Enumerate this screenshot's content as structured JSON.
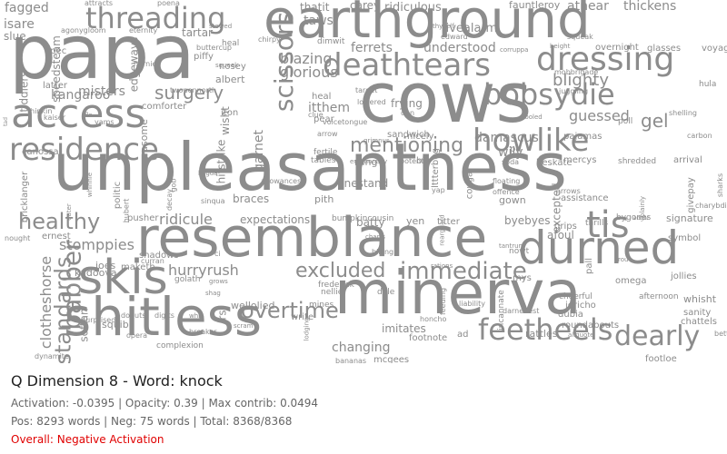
{
  "title": "Q Dimension 8 - Word: knock",
  "stats_line": "Activation: -0.0395 | Opacity: 0.39 | Max contrib: 0.0494",
  "counts_line": "Pos: 8293 words | Neg: 75 words | Total: 8368/8368",
  "overall": "Overall: Negative Activation",
  "colors": {
    "word": "#8c8c8c",
    "negative": "#e00000",
    "title": "#222222",
    "meta": "#666666"
  },
  "words": [
    "papa",
    "unpleasantness",
    "resemblance",
    "minerva",
    "cows",
    "earthground",
    "shitless",
    "skis",
    "access",
    "deathtears",
    "threading",
    "residence",
    "durned",
    "howlike",
    "feetheels",
    "bobsydie",
    "dressing",
    "tis",
    "dearly",
    "excluded",
    "immediate",
    "overtime",
    "mentioning",
    "healthy",
    "scissors",
    "babber",
    "standards",
    "surgery",
    "ridicule",
    "stomppies",
    "hurryrush",
    "blazing",
    "glorious",
    "ferrets",
    "understood",
    "fivealarm",
    "blighty",
    "guessed",
    "gel",
    "ridiculous",
    "fagged",
    "attracts",
    "poena",
    "carey",
    "thatit",
    "taws",
    "fauntleroy",
    "atnear",
    "thickens",
    "tartar",
    "eternity",
    "agonygloom",
    "kangaroo",
    "misters",
    "latter",
    "spec",
    "isare",
    "slue",
    "tiddlers",
    "speedsteam",
    "edgeways",
    "buttercup",
    "piffy",
    "albert",
    "nosey",
    "itthem",
    "heal",
    "frying",
    "dan",
    "sandwich",
    "nicely",
    "damascus",
    "wily",
    "pa",
    "soda",
    "beskate",
    "mercys",
    "shredded",
    "arrival",
    "strawberry",
    "pajamas",
    "carbon",
    "poll",
    "shelling",
    "hula",
    "mobbrigade",
    "overnight",
    "glasses",
    "voyage",
    "height",
    "squeak",
    "edward",
    "thyself",
    "corruppa",
    "juggling",
    "target",
    "lowered",
    "fooled",
    "comforter",
    "asome",
    "hitstrike",
    "garnet",
    "wisht",
    "iton",
    "clotheshorse",
    "bricklanger",
    "canossa",
    "ernest",
    "nought",
    "politic",
    "pusher",
    "expectations",
    "braces",
    "linestand",
    "pith",
    "fertile",
    "tables",
    "rung",
    "biv",
    "lttterbug",
    "cougar",
    "yap",
    "floating",
    "offence",
    "gown",
    "assistance",
    "arrows",
    "thrills",
    "bygones",
    "signature",
    "givepay",
    "charybdis",
    "sharks",
    "excepted",
    "afoul",
    "plainly",
    "edgar",
    "grips",
    "symbol",
    "jollies",
    "whisht",
    "sanity",
    "chattels",
    "betters",
    "footloe",
    "rattles",
    "jericho",
    "dubia",
    "roundabouts",
    "cheerful",
    "omega",
    "pall",
    "afternoon",
    "rou",
    "mys",
    "nowt",
    "tantrum",
    "byebyes",
    "titter",
    "yen",
    "batty",
    "bumpkincousin",
    "imitates",
    "footnote",
    "changing",
    "mcgees",
    "bananas",
    "ad",
    "aliquote",
    "incannate",
    "liability",
    "darnedest",
    "honcho",
    "feeding",
    "rations",
    "dale",
    "nellie",
    "frederick",
    "mines",
    "write",
    "wellolied",
    "squib",
    "donuts",
    "digits",
    "surprised",
    "opera",
    "complexion",
    "lodging",
    "dynamite",
    "softan",
    "kadoova",
    "joes",
    "maketh",
    "curran",
    "shadows",
    "golath",
    "ci",
    "grows",
    "shag",
    "rs",
    "whiz",
    "scram",
    "breaker",
    "charts",
    "billing",
    "rearguard",
    "heal",
    "dimwit",
    "chirpy",
    "pear",
    "clue",
    "arrow",
    "voicetongue",
    "potentia",
    "emotionally",
    "grimnus",
    "decay",
    "gob",
    "whinnie",
    "eater",
    "hubert",
    "sinqua",
    "lingua",
    "allowances",
    "kaiser",
    "yams",
    "flo",
    "tad",
    "thinkin",
    "hernie",
    "twopennorth",
    "squeak",
    "stewed"
  ]
}
